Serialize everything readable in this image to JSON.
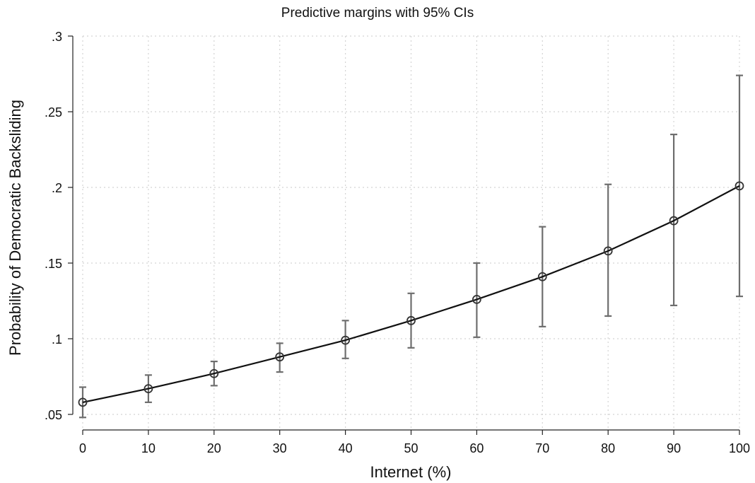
{
  "chart_data": {
    "type": "line",
    "title": "Predictive margins with 95% CIs",
    "xlabel": "Internet (%)",
    "ylabel": "Probability of Democratic Backsliding",
    "x": [
      0,
      10,
      20,
      30,
      40,
      50,
      60,
      70,
      80,
      90,
      100
    ],
    "xlim": [
      0,
      100
    ],
    "ylim": [
      0.045,
      0.3
    ],
    "xticks": [
      0,
      10,
      20,
      30,
      40,
      50,
      60,
      70,
      80,
      90,
      100
    ],
    "xtick_labels": [
      "0",
      "10",
      "20",
      "30",
      "40",
      "50",
      "60",
      "70",
      "80",
      "90",
      "100"
    ],
    "yticks": [
      0.05,
      0.1,
      0.15,
      0.2,
      0.25,
      0.3
    ],
    "ytick_labels": [
      ".05",
      ".1",
      ".15",
      ".2",
      ".25",
      ".3"
    ],
    "grid": true,
    "series": [
      {
        "values": [
          0.058,
          0.067,
          0.077,
          0.088,
          0.099,
          0.112,
          0.126,
          0.141,
          0.158,
          0.178,
          0.201
        ],
        "ci_lower": [
          0.048,
          0.058,
          0.069,
          0.078,
          0.087,
          0.094,
          0.101,
          0.108,
          0.115,
          0.122,
          0.128
        ],
        "ci_upper": [
          0.068,
          0.076,
          0.085,
          0.097,
          0.112,
          0.13,
          0.15,
          0.174,
          0.202,
          0.235,
          0.274
        ],
        "color": "#111111",
        "ci_color": "#6e6e6e"
      }
    ]
  }
}
